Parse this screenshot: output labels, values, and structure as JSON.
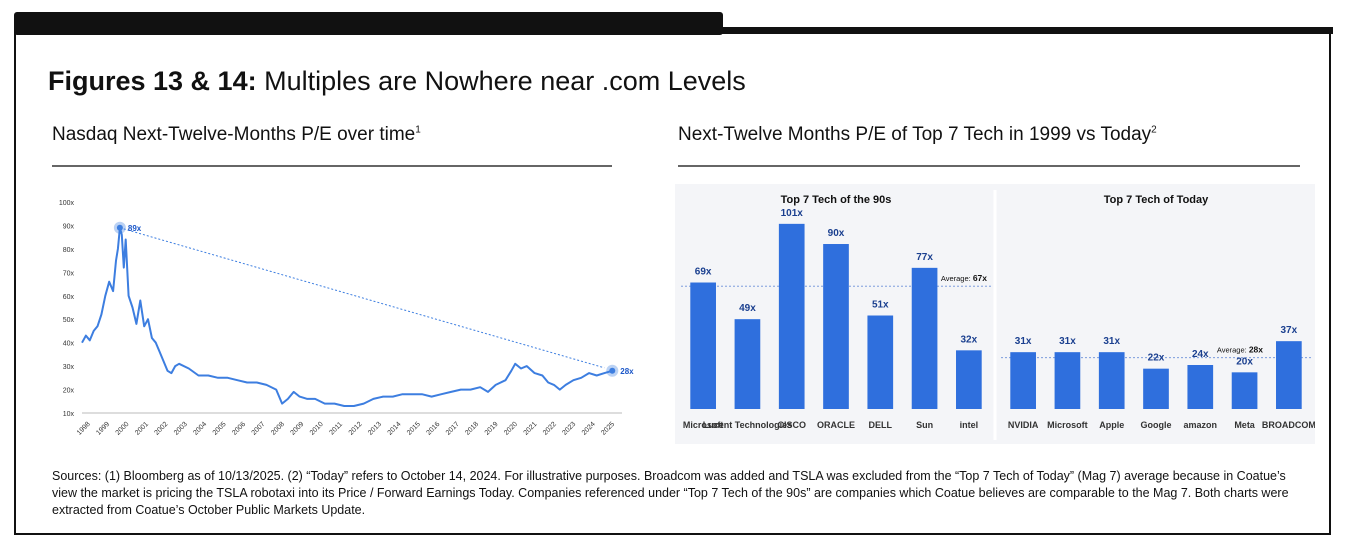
{
  "page": {
    "title_bold": "Figures 13 & 14:",
    "title_rest": " Multiples are Nowhere near .com Levels",
    "left_subtitle": "Nasdaq Next-Twelve-Months P/E over time",
    "left_subtitle_sup": "1",
    "right_subtitle": "Next-Twelve Months P/E of Top 7 Tech in 1999 vs Today",
    "right_subtitle_sup": "2",
    "footnote": "Sources: (1) Bloomberg as of 10/13/2025. (2) “Today” refers to October 14, 2024. For illustrative purposes. Broadcom was added and TSLA was excluded from the “Top 7 Tech of Today” (Mag 7) average because in Coatue’s view the market is pricing the TSLA robotaxi into its Price / Forward Earnings Today. Companies referenced under “Top 7 Tech of the 90s” are companies which Coatue believes are comparable to the Mag 7. Both charts were extracted from Coatue’s October Public Markets Update."
  },
  "colors": {
    "bar": "#2f6fdd",
    "line": "#3d7ee0",
    "accent": "#1a56c8"
  },
  "chart_data": [
    {
      "type": "line",
      "title": "",
      "xlabel": "",
      "ylabel": "",
      "ylim": [
        10,
        100
      ],
      "xlim": [
        1998,
        2025.8
      ],
      "y_ticks": [
        "10x",
        "20x",
        "30x",
        "40x",
        "50x",
        "60x",
        "70x",
        "80x",
        "90x",
        "100x"
      ],
      "x_ticks": [
        "1998",
        "1999",
        "2000",
        "2001",
        "2002",
        "2003",
        "2004",
        "2005",
        "2006",
        "2007",
        "2008",
        "2009",
        "2010",
        "2011",
        "2012",
        "2013",
        "2014",
        "2015",
        "2016",
        "2017",
        "2018",
        "2019",
        "2020",
        "2021",
        "2022",
        "2023",
        "2024",
        "2025"
      ],
      "annotations": [
        {
          "label": "89x",
          "x": 1999.95,
          "y": 89
        },
        {
          "label": "28x",
          "x": 2025.3,
          "y": 28
        }
      ],
      "series": [
        {
          "x": [
            1998.0,
            1998.2,
            1998.4,
            1998.6,
            1998.8,
            1999.0,
            1999.2,
            1999.4,
            1999.6,
            1999.75,
            1999.85,
            1999.95,
            2000.05,
            2000.15,
            2000.25,
            2000.4,
            2000.6,
            2000.8,
            2001.0,
            2001.2,
            2001.4,
            2001.6,
            2001.8,
            2002.0,
            2002.2,
            2002.4,
            2002.6,
            2002.8,
            2003.0,
            2003.5,
            2004.0,
            2004.5,
            2005.0,
            2005.5,
            2006.0,
            2006.5,
            2007.0,
            2007.5,
            2008.0,
            2008.3,
            2008.6,
            2008.9,
            2009.2,
            2009.6,
            2010.0,
            2010.5,
            2011.0,
            2011.5,
            2012.0,
            2012.5,
            2013.0,
            2013.5,
            2014.0,
            2014.5,
            2015.0,
            2015.5,
            2016.0,
            2016.5,
            2017.0,
            2017.5,
            2018.0,
            2018.5,
            2018.9,
            2019.3,
            2019.8,
            2020.1,
            2020.3,
            2020.6,
            2020.9,
            2021.3,
            2021.7,
            2022.0,
            2022.3,
            2022.6,
            2022.9,
            2023.3,
            2023.7,
            2024.1,
            2024.5,
            2024.9,
            2025.3
          ],
          "y": [
            40,
            43,
            41,
            45,
            47,
            52,
            60,
            66,
            62,
            75,
            80,
            89,
            86,
            72,
            84,
            60,
            55,
            48,
            58,
            47,
            50,
            42,
            40,
            36,
            32,
            28,
            27,
            30,
            31,
            29,
            26,
            26,
            25,
            25,
            24,
            23,
            23,
            22,
            20,
            14,
            16,
            19,
            17,
            16,
            16,
            14,
            14,
            13,
            13,
            14,
            16,
            17,
            17,
            18,
            18,
            18,
            17,
            18,
            19,
            20,
            20,
            21,
            19,
            22,
            24,
            28,
            31,
            29,
            30,
            27,
            26,
            23,
            22,
            20,
            22,
            24,
            25,
            27,
            26,
            27,
            28
          ]
        }
      ]
    },
    {
      "type": "bar",
      "title": "Top 7 Tech of the 90s",
      "categories": [
        "Microsoft",
        "Lucent Technologies",
        "CISCO",
        "ORACLE",
        "DELL",
        "Sun",
        "intel"
      ],
      "values": [
        69,
        49,
        101,
        90,
        51,
        77,
        32
      ],
      "value_labels": [
        "69x",
        "49x",
        "101x",
        "90x",
        "51x",
        "77x",
        "32x"
      ],
      "average_label": "Average:",
      "average_value": 67,
      "average_value_label": "67x",
      "ylim": [
        0,
        110
      ]
    },
    {
      "type": "bar",
      "title": "Top 7 Tech of Today",
      "categories": [
        "NVIDIA",
        "Microsoft",
        "Apple",
        "Google",
        "amazon",
        "Meta",
        "BROADCOM"
      ],
      "values": [
        31,
        31,
        31,
        22,
        24,
        20,
        37
      ],
      "value_labels": [
        "31x",
        "31x",
        "31x",
        "22x",
        "24x",
        "20x",
        "37x"
      ],
      "average_label": "Average:",
      "average_value": 28,
      "average_value_label": "28x",
      "ylim": [
        0,
        110
      ]
    }
  ]
}
